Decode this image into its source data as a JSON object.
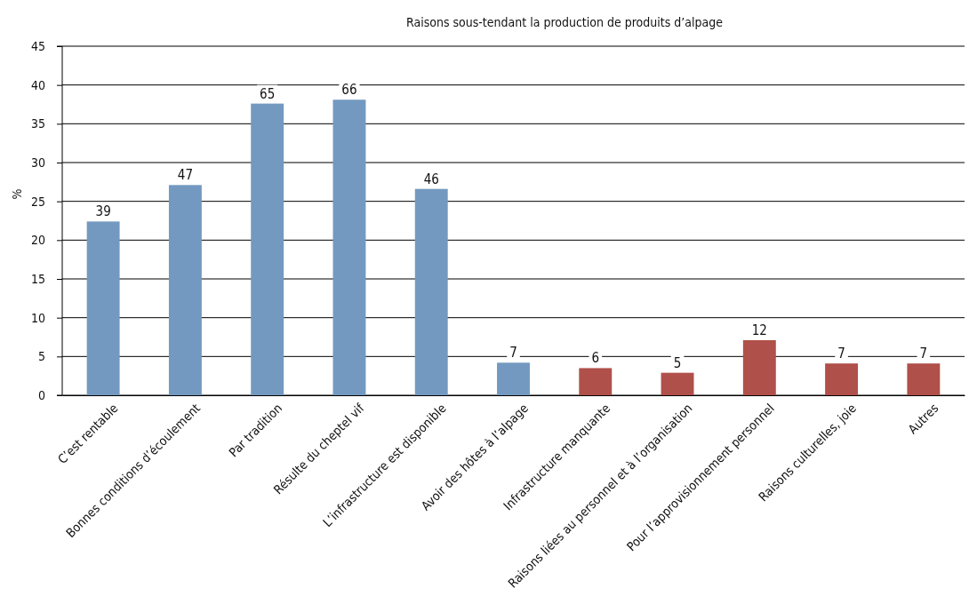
{
  "chart_data": {
    "type": "bar",
    "title": "Raisons sous-tendant la production de produits d’alpage",
    "ylabel": "%",
    "categories": [
      "C’est rentable",
      "Bonnes conditions d’écoulement",
      "Par tradition",
      "Résulte du cheptel vif",
      "L’infrastructure est disponible",
      "Avoir des hôtes à l’alpage",
      "Infrastructure manquante",
      "Raisons liées au personnel et à l’organisation",
      "Pour l’approvisionnement personnel",
      "Raisons culturelles, joie",
      "Autres"
    ],
    "values": [
      22.4,
      27.1,
      37.6,
      38.1,
      26.6,
      4.2,
      3.5,
      2.9,
      7.1,
      4.1,
      4.1
    ],
    "colors": [
      "#7399c0",
      "#7399c0",
      "#7399c0",
      "#7399c0",
      "#7399c0",
      "#7399c0",
      "#b0504a",
      "#b0504a",
      "#b0504a",
      "#b0504a",
      "#b0504a"
    ],
    "annotations": [
      {
        "text": "39",
        "x": "C’est rentable",
        "y": 22.4
      },
      {
        "text": "47",
        "x": "Bonnes conditions d’écoulement",
        "y": 27.1
      },
      {
        "text": "65",
        "x": "Par tradition",
        "y": 37.6
      },
      {
        "text": "66",
        "x": "Résulte du cheptel vif",
        "y": 38.1
      },
      {
        "text": "46",
        "x": "L’infrastructure est disponible",
        "y": 26.6
      },
      {
        "text": "7",
        "x": "Avoir des hôtes à l’alpage",
        "y": 4.2
      },
      {
        "text": "6",
        "x": "Infrastructure manquante",
        "y": 3.5
      },
      {
        "text": "5",
        "x": "Raisons liées au personnel et à l’organisation",
        "y": 2.9
      },
      {
        "text": "12",
        "x": "Pour l’approvisionnement personnel",
        "y": 7.1
      },
      {
        "text": "7",
        "x": "Raisons culturelles, joie",
        "y": 4.1
      },
      {
        "text": "7",
        "x": "Autres",
        "y": 4.1
      }
    ],
    "ylim": [
      0,
      45
    ],
    "yticks": [
      0,
      5,
      10,
      15,
      20,
      25,
      30,
      35,
      40,
      45
    ],
    "grid": "y"
  }
}
